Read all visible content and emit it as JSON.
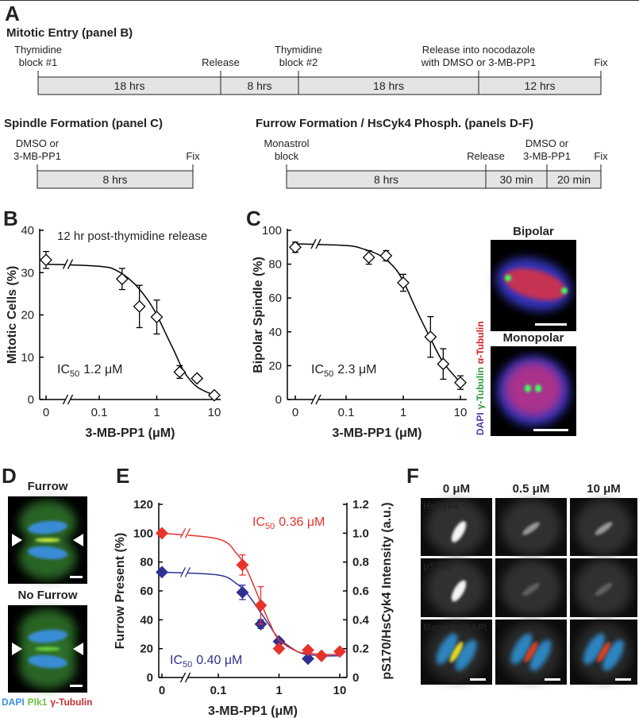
{
  "panel_a": {
    "label": "A",
    "timelines": [
      {
        "title": "Mitotic Entry (panel B)",
        "events": [
          [
            "Thymidine",
            "block #1"
          ],
          [
            "Release"
          ],
          [
            "Thymidine",
            "block #2"
          ],
          [
            "Release into nocodazole",
            "with DMSO or 3-MB-PP1"
          ],
          [
            "Fix"
          ]
        ],
        "segments": [
          "18 hrs",
          "8 hrs",
          "18 hrs",
          "12 hrs"
        ]
      },
      {
        "title": "Spindle Formation (panel C)",
        "events": [
          [
            "DMSO or",
            "3-MB-PP1"
          ],
          [
            "Fix"
          ]
        ],
        "segments": [
          "8 hrs"
        ]
      },
      {
        "title": "Furrow Formation / HsCyk4 Phosph. (panels D-F)",
        "events": [
          [
            "Monastrol",
            "block"
          ],
          [
            "Release"
          ],
          [
            "DMSO or",
            "3-MB-PP1"
          ],
          [
            "Fix"
          ]
        ],
        "segments": [
          "8 hrs",
          "30 min",
          "20 min"
        ]
      }
    ]
  },
  "chart_data": [
    {
      "type": "scatter",
      "panel": "B",
      "annotation": "12 hr post-thymidine release",
      "ic50": [
        "IC",
        "50",
        "1.2 μM"
      ],
      "xlabel": "3-MB-PP1 (μM)",
      "ylabel": "Mitotic Cells (%)",
      "xscale": "log",
      "xlim": [
        0,
        10
      ],
      "xticks": [
        0,
        0.1,
        1,
        10
      ],
      "ylim": [
        0,
        40
      ],
      "yticks": [
        0,
        10,
        20,
        30,
        40
      ],
      "series": [
        {
          "color": "#000000",
          "marker": "diamond-open",
          "x": [
            0,
            0.25,
            0.5,
            1,
            2.5,
            5,
            10
          ],
          "values": [
            33,
            28.5,
            22,
            19.5,
            6.5,
            5,
            1
          ],
          "errors": [
            2,
            2.5,
            5,
            4,
            1.5,
            0.5,
            0.3
          ],
          "fit": {
            "x": [
              0,
              0.1,
              0.2,
              0.4,
              0.7,
              1,
              1.5,
              2,
              3,
              5,
              10
            ],
            "values": [
              32,
              31.5,
              30.5,
              27.5,
              23.5,
              20,
              15,
              11.5,
              6.5,
              3,
              1
            ]
          }
        }
      ]
    },
    {
      "type": "scatter",
      "panel": "C",
      "ic50": [
        "IC",
        "50",
        "2.3 μM"
      ],
      "xlabel": "3-MB-PP1 (μM)",
      "ylabel": "Bipolar Spindle (%)",
      "xscale": "log",
      "xlim": [
        0,
        10
      ],
      "xticks": [
        0,
        0.1,
        1,
        10
      ],
      "ylim": [
        0,
        100
      ],
      "yticks": [
        0,
        20,
        40,
        60,
        80,
        100
      ],
      "series": [
        {
          "color": "#000000",
          "marker": "diamond-open",
          "x": [
            0,
            0.25,
            0.5,
            1,
            3,
            5,
            10
          ],
          "values": [
            90,
            84,
            85,
            69,
            37,
            21,
            10
          ],
          "errors": [
            3,
            4,
            3,
            5,
            12,
            9,
            4
          ],
          "fit": {
            "x": [
              0,
              0.1,
              0.2,
              0.4,
              0.7,
              1,
              1.5,
              2,
              3,
              5,
              10
            ],
            "values": [
              92,
              91,
              89,
              85,
              78,
              70,
              57,
              48,
              36,
              22,
              10
            ]
          }
        }
      ]
    },
    {
      "type": "scatter",
      "panel": "E",
      "xlabel": "3-MB-PP1 (μM)",
      "ylabel": "Furrow Present (%)",
      "y2label": "pS170/HsCyk4 Intensity (a.u.)",
      "xscale": "log",
      "xlim": [
        0,
        10
      ],
      "xticks": [
        0,
        0.1,
        1,
        10
      ],
      "ylim": [
        0,
        120
      ],
      "yticks": [
        0,
        20,
        40,
        60,
        80,
        100,
        120
      ],
      "y2lim": [
        0,
        1.2
      ],
      "y2ticks": [
        0,
        0.2,
        0.4,
        0.6,
        0.8,
        {
          "value": 1,
          "label": "1.0"
        },
        1.2
      ],
      "series": [
        {
          "color": "#2e3192",
          "marker": "diamond-filled",
          "ic50": [
            "IC",
            "50",
            "0.40 μM"
          ],
          "x": [
            0,
            0.25,
            0.5,
            1,
            3,
            5
          ],
          "values": [
            73,
            59,
            37,
            25,
            13,
            15
          ],
          "errors": [
            0,
            5,
            3,
            2,
            1,
            1
          ],
          "fit": {
            "x": [
              0,
              0.1,
              0.2,
              0.3,
              0.5,
              0.7,
              1,
              2,
              3,
              5,
              10
            ],
            "values": [
              73,
              71,
              65,
              58,
              45,
              36,
              27,
              18,
              16,
              15,
              15
            ]
          }
        },
        {
          "color": "#e8322b",
          "marker": "diamond-filled",
          "axis": "y2",
          "ic50": [
            "IC",
            "50",
            "0.36 μM"
          ],
          "x": [
            0,
            0.25,
            0.5,
            1,
            3,
            5,
            10
          ],
          "values": [
            1.0,
            0.78,
            0.5,
            0.2,
            0.19,
            0.15,
            0.18
          ],
          "errors": [
            0,
            0.07,
            0.13,
            0.02,
            0.01,
            0.02,
            0
          ],
          "fit": {
            "x": [
              0,
              0.1,
              0.2,
              0.3,
              0.5,
              0.7,
              1,
              2,
              3,
              5,
              10
            ],
            "values": [
              1.0,
              0.96,
              0.86,
              0.74,
              0.52,
              0.38,
              0.26,
              0.18,
              0.17,
              0.16,
              0.16
            ]
          }
        }
      ]
    }
  ],
  "panel_c_images": {
    "titles": [
      "Bipolar",
      "Monopolar"
    ],
    "stain_labels": [
      "DAPI",
      "γ-Tubulin",
      "α-Tubulin"
    ]
  },
  "panel_d": {
    "label": "D",
    "titles": [
      "Furrow",
      "No Furrow"
    ],
    "stain_labels": [
      "DAPI",
      "Plk1",
      "γ-Tubulin"
    ]
  },
  "panel_f": {
    "label": "F",
    "columns": [
      "0 μM",
      "0.5 μM",
      "10 μM"
    ],
    "rows": [
      "HsCyk4",
      "pS170",
      "Merge w/DAPI"
    ]
  }
}
